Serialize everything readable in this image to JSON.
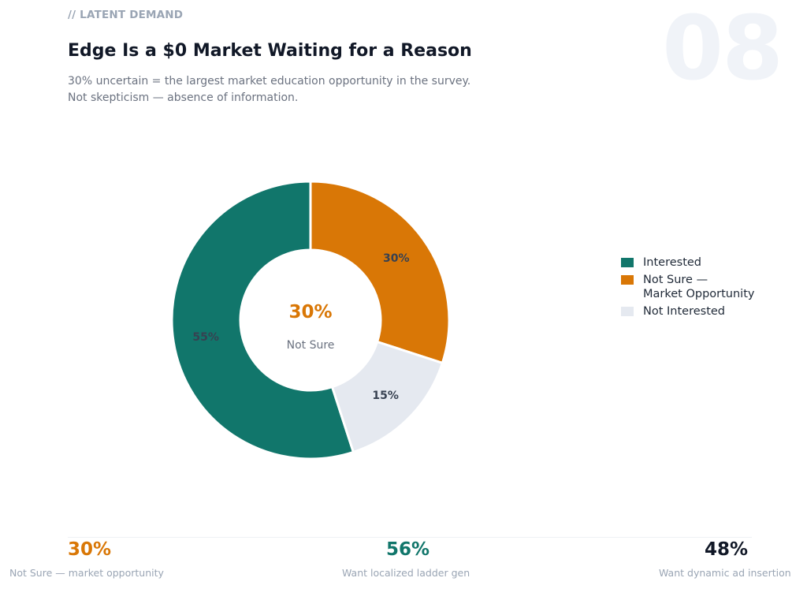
{
  "header": {
    "eyebrow": "// LATENT DEMAND",
    "slide_number": "08",
    "title": "Edge Is a $0 Market Waiting for a Reason",
    "subtitle_line1": "30% uncertain = the largest market education opportunity in the survey.",
    "subtitle_line2": "Not skepticism — absence of information."
  },
  "chart_data": {
    "type": "pie",
    "variant": "donut",
    "series": [
      {
        "name": "Interested",
        "value": 55,
        "label": "55%",
        "color": "#11766b"
      },
      {
        "name": "Not Sure —\nMarket Opportunity",
        "value": 30,
        "label": "30%",
        "color": "#d97706"
      },
      {
        "name": "Not Interested",
        "value": 15,
        "label": "15%",
        "color": "#e5e9f0"
      }
    ],
    "center_value": "30%",
    "center_label": "Not Sure",
    "center_color": "#d97706",
    "legend_position": "right"
  },
  "stats": [
    {
      "value": "30%",
      "label": "Not Sure — market opportunity",
      "color": "#d97706"
    },
    {
      "value": "56%",
      "label": "Want localized ladder gen",
      "color": "#11766b"
    },
    {
      "value": "48%",
      "label": "Want dynamic ad insertion",
      "color": "#111827"
    }
  ]
}
